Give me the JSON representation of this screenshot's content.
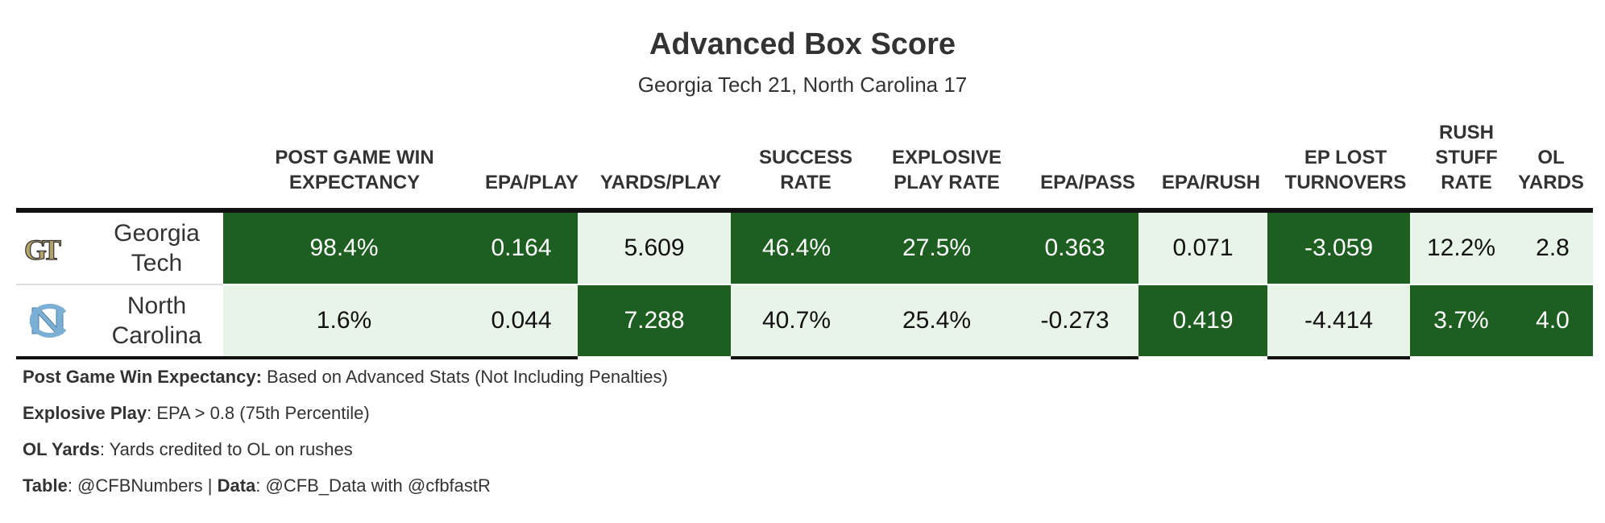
{
  "title": "Advanced Box Score",
  "subtitle": "Georgia Tech 21, North Carolina 17",
  "chart_data": {
    "type": "table",
    "columns": [
      {
        "line1": "POST GAME WIN",
        "line2": "EXPECTANCY"
      },
      {
        "line1": "",
        "line2": "EPA/PLAY"
      },
      {
        "line1": "",
        "line2": "YARDS/PLAY"
      },
      {
        "line1": "SUCCESS",
        "line2": "RATE"
      },
      {
        "line1": "EXPLOSIVE",
        "line2": "PLAY RATE"
      },
      {
        "line1": "",
        "line2": "EPA/PASS"
      },
      {
        "line1": "",
        "line2": "EPA/RUSH"
      },
      {
        "line1": "EP LOST",
        "line2": "TURNOVERS"
      },
      {
        "line0": "RUSH",
        "line1": "STUFF",
        "line2": "RATE"
      },
      {
        "line1": "OL",
        "line2": "YARDS"
      }
    ],
    "rows": [
      {
        "team_line1": "Georgia",
        "team_line2": "Tech",
        "logo": "georgia-tech-logo",
        "values": [
          "98.4%",
          "0.164",
          "5.609",
          "46.4%",
          "27.5%",
          "0.363",
          "0.071",
          "-3.059",
          "12.2%",
          "2.8"
        ],
        "shade": [
          "dark",
          "dark",
          "light",
          "dark",
          "dark",
          "dark",
          "light",
          "dark",
          "light",
          "light"
        ]
      },
      {
        "team_line1": "North",
        "team_line2": "Carolina",
        "logo": "north-carolina-logo",
        "values": [
          "1.6%",
          "0.044",
          "7.288",
          "40.7%",
          "25.4%",
          "-0.273",
          "0.419",
          "-4.414",
          "3.7%",
          "4.0"
        ],
        "shade": [
          "light",
          "light",
          "dark",
          "light",
          "light",
          "light",
          "dark",
          "light",
          "dark",
          "dark"
        ]
      }
    ],
    "colors": {
      "dark": "#1e5e20",
      "light": "#e8f4e8",
      "gt_gold": "#b3a369",
      "unc_blue": "#7bafd4"
    }
  },
  "footnotes": [
    {
      "label": "Post Game Win Expectancy:",
      "text": " Based on Advanced Stats (Not Including Penalties)"
    },
    {
      "label": "Explosive Play",
      "text": ": EPA > 0.8 (75th Percentile)"
    },
    {
      "label": "OL Yards",
      "text": ": Yards credited to OL on rushes"
    },
    {
      "label": "Table",
      "text": ": @CFBNumbers | ",
      "label2": "Data",
      "text2": ": @CFB_Data with @cfbfastR"
    }
  ]
}
